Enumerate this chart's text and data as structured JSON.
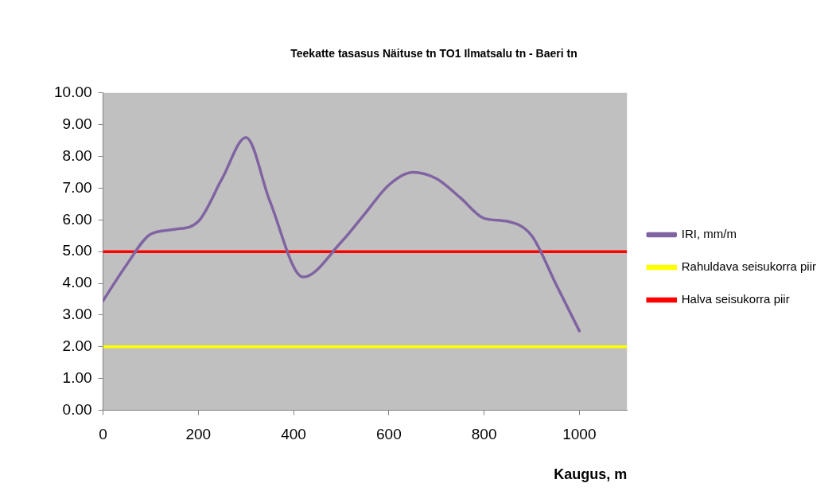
{
  "chart_data": {
    "type": "line",
    "title": "Teekatte tasasus Näituse tn TO1 Ilmatsalu tn - Baeri tn",
    "xlabel": "Kaugus, m",
    "x": [
      0,
      50,
      100,
      150,
      200,
      250,
      300,
      350,
      420,
      500,
      550,
      600,
      650,
      700,
      750,
      800,
      850,
      900,
      950,
      1000
    ],
    "series": [
      {
        "name": "IRI, mm/m",
        "color": "#8064a2",
        "values": [
          3.45,
          4.6,
          5.55,
          5.7,
          5.95,
          7.3,
          8.6,
          6.6,
          4.2,
          5.3,
          6.2,
          7.1,
          7.5,
          7.3,
          6.7,
          6.05,
          5.95,
          5.5,
          4.0,
          2.5
        ]
      }
    ],
    "ref_lines": [
      {
        "axis": "y",
        "value": 2,
        "label": "Rahuldava seisukorra piir",
        "color": "#ffff00"
      },
      {
        "axis": "y",
        "value": 5,
        "label": "Halva seisukorra piir",
        "color": "#ff0000"
      }
    ],
    "xlim": [
      0,
      1100
    ],
    "xticks": [
      0,
      200,
      400,
      600,
      800,
      1000
    ],
    "ylim": [
      0,
      10
    ],
    "yticks": [
      {
        "value": 0,
        "label": "0.00"
      },
      {
        "value": 1,
        "label": "1.00"
      },
      {
        "value": 2,
        "label": "2.00"
      },
      {
        "value": 3,
        "label": "3.00"
      },
      {
        "value": 4,
        "label": "4.00"
      },
      {
        "value": 5,
        "label": "5.00"
      },
      {
        "value": 6,
        "label": "6.00"
      },
      {
        "value": 7,
        "label": "7.00"
      },
      {
        "value": 8,
        "label": "8.00"
      },
      {
        "value": 9,
        "label": "9.00"
      },
      {
        "value": 10,
        "label": "10.00"
      }
    ],
    "grid": false,
    "legend": "right",
    "marker": "none",
    "line_style": "solid"
  }
}
